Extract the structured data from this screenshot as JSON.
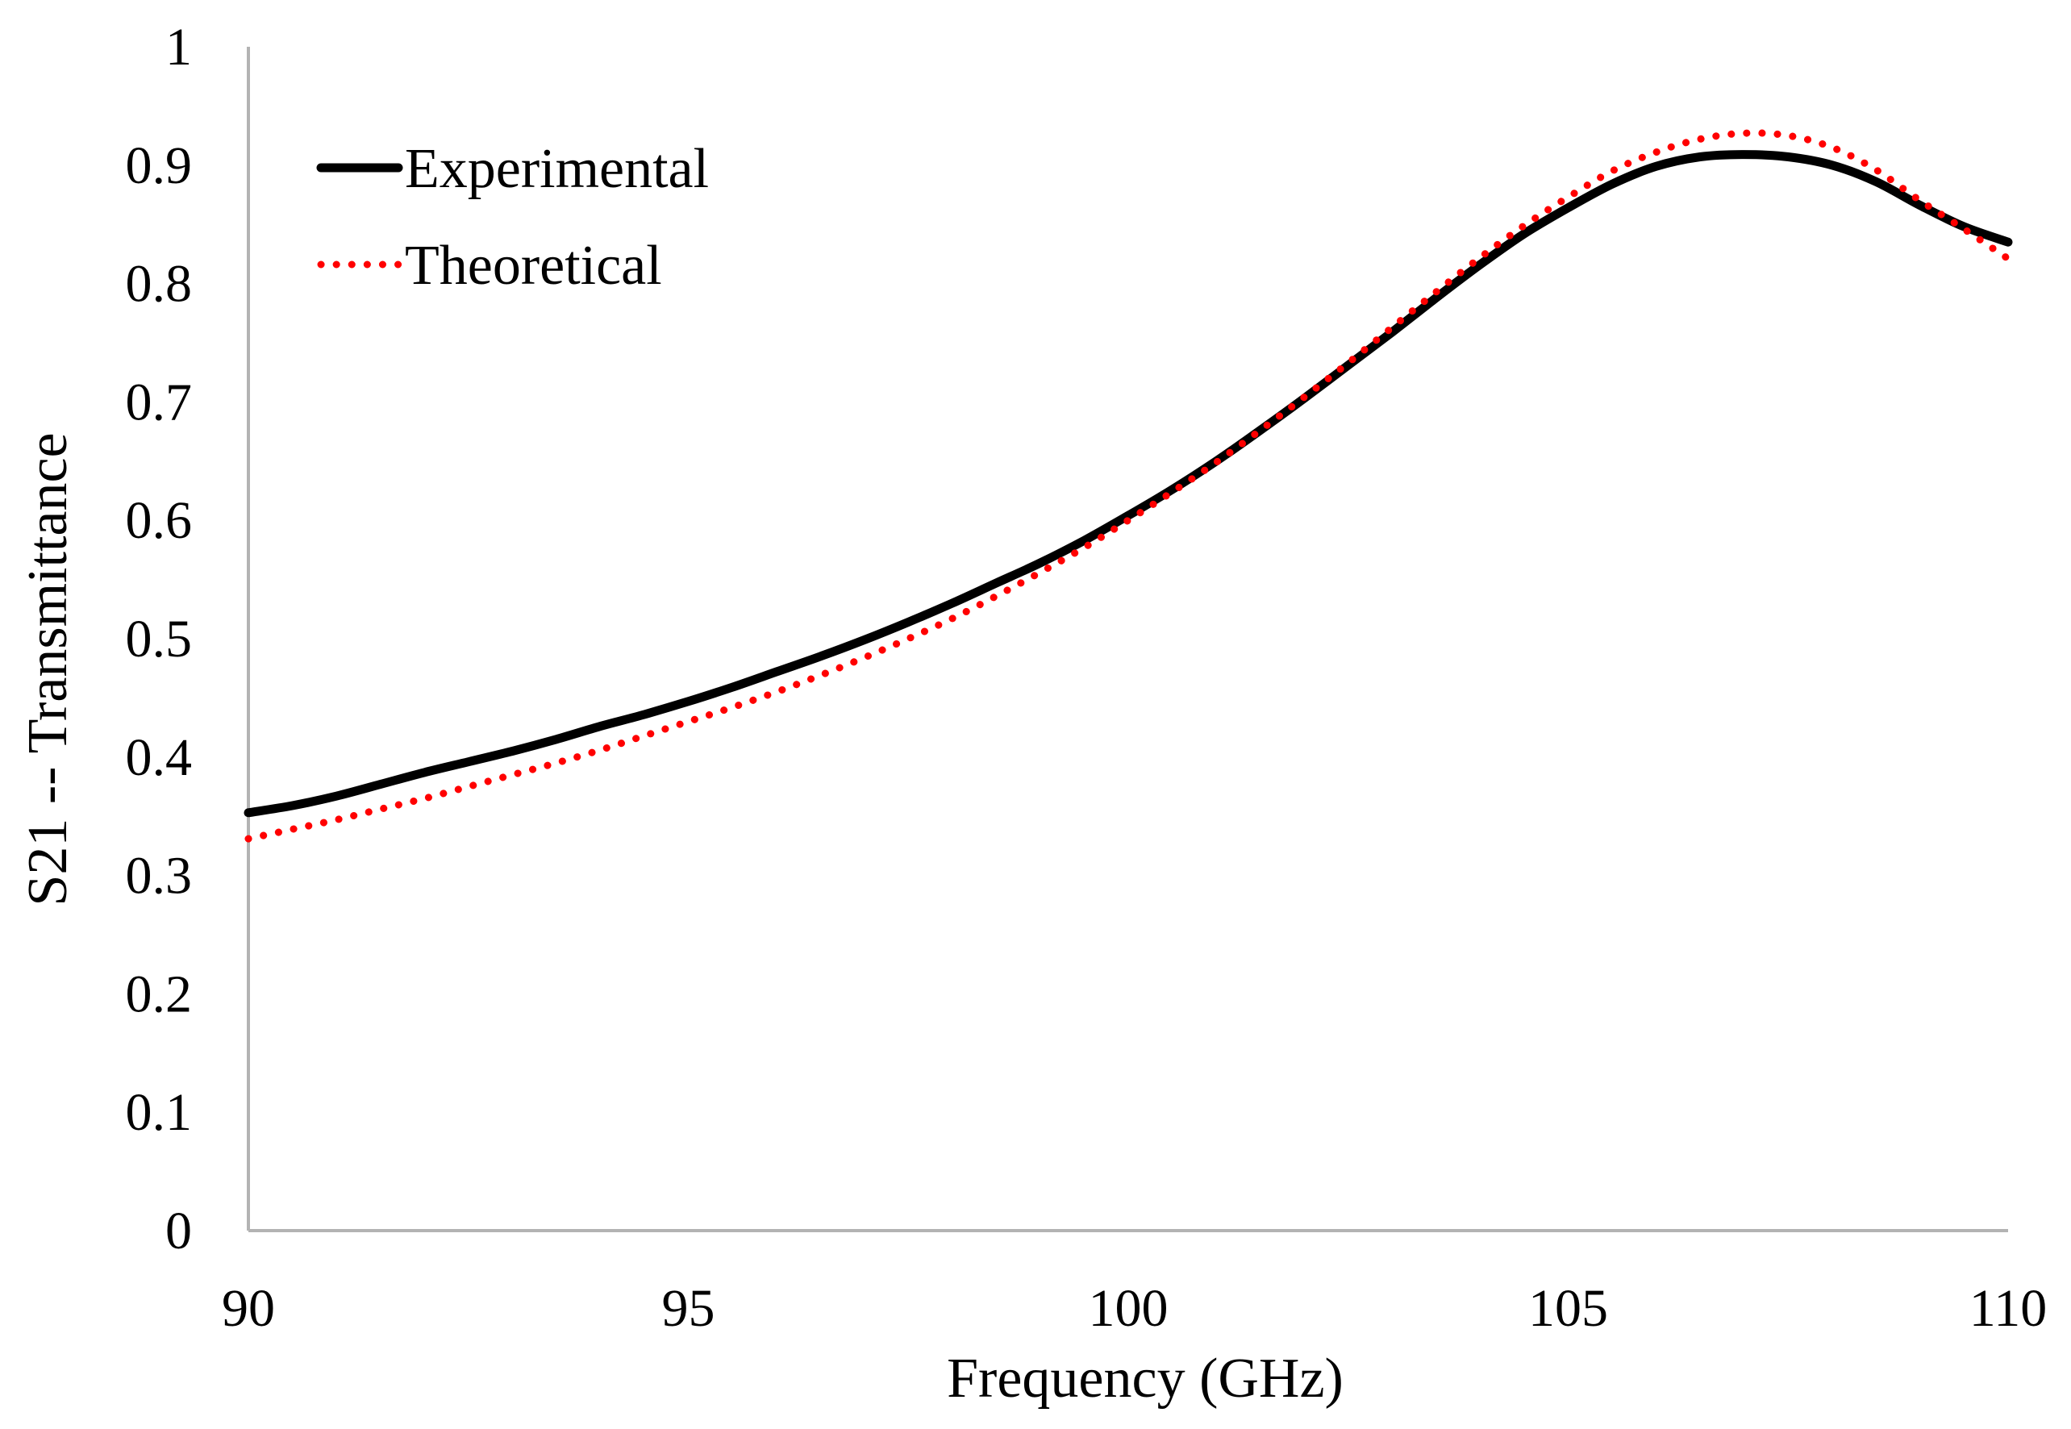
{
  "chart_data": {
    "type": "line",
    "title": "",
    "xlabel": "Frequency (GHz)",
    "ylabel": "S21 -- Transmittance",
    "xlim": [
      90,
      110
    ],
    "ylim": [
      0,
      1
    ],
    "x_ticks": [
      90,
      95,
      100,
      105,
      110
    ],
    "x_tick_labels": [
      "90",
      "95",
      "100",
      "105",
      "110"
    ],
    "y_ticks": [
      0,
      0.1,
      0.2,
      0.3,
      0.4,
      0.5,
      0.6,
      0.7,
      0.8,
      0.9,
      1
    ],
    "y_tick_labels": [
      "0",
      "0.1",
      "0.2",
      "0.3",
      "0.4",
      "0.5",
      "0.6",
      "0.7",
      "0.8",
      "0.9",
      "1"
    ],
    "grid": false,
    "legend_position": "top-left",
    "series": [
      {
        "name": "Experimental",
        "style": "solid",
        "color": "#000000",
        "x": [
          90,
          90.5,
          91,
          91.5,
          92,
          92.5,
          93,
          93.5,
          94,
          94.5,
          95,
          95.5,
          96,
          96.5,
          97,
          97.5,
          98,
          98.5,
          99,
          99.5,
          100,
          100.5,
          101,
          101.5,
          102,
          102.5,
          103,
          103.5,
          104,
          104.5,
          105,
          105.5,
          106,
          106.5,
          107,
          107.5,
          108,
          108.5,
          109,
          109.5,
          110
        ],
        "y": [
          0.353,
          0.359,
          0.367,
          0.377,
          0.387,
          0.396,
          0.405,
          0.415,
          0.426,
          0.436,
          0.447,
          0.459,
          0.472,
          0.485,
          0.499,
          0.514,
          0.53,
          0.547,
          0.564,
          0.583,
          0.604,
          0.626,
          0.65,
          0.676,
          0.703,
          0.731,
          0.759,
          0.788,
          0.816,
          0.842,
          0.864,
          0.884,
          0.899,
          0.907,
          0.909,
          0.907,
          0.9,
          0.886,
          0.866,
          0.848,
          0.835
        ]
      },
      {
        "name": "Theoretical",
        "style": "dotted",
        "color": "#ff0000",
        "x": [
          90,
          90.5,
          91,
          91.5,
          92,
          92.5,
          93,
          93.5,
          94,
          94.5,
          95,
          95.5,
          96,
          96.5,
          97,
          97.5,
          98,
          98.5,
          99,
          99.5,
          100,
          100.5,
          101,
          101.5,
          102,
          102.5,
          103,
          103.5,
          104,
          104.5,
          105,
          105.5,
          106,
          106.5,
          107,
          107.5,
          108,
          108.5,
          109,
          109.5,
          110
        ],
        "y": [
          0.331,
          0.339,
          0.347,
          0.356,
          0.365,
          0.375,
          0.385,
          0.395,
          0.406,
          0.418,
          0.43,
          0.442,
          0.455,
          0.469,
          0.484,
          0.5,
          0.517,
          0.536,
          0.556,
          0.577,
          0.6,
          0.624,
          0.649,
          0.676,
          0.704,
          0.733,
          0.763,
          0.793,
          0.822,
          0.849,
          0.873,
          0.895,
          0.911,
          0.922,
          0.927,
          0.925,
          0.915,
          0.896,
          0.87,
          0.846,
          0.821
        ]
      }
    ]
  }
}
